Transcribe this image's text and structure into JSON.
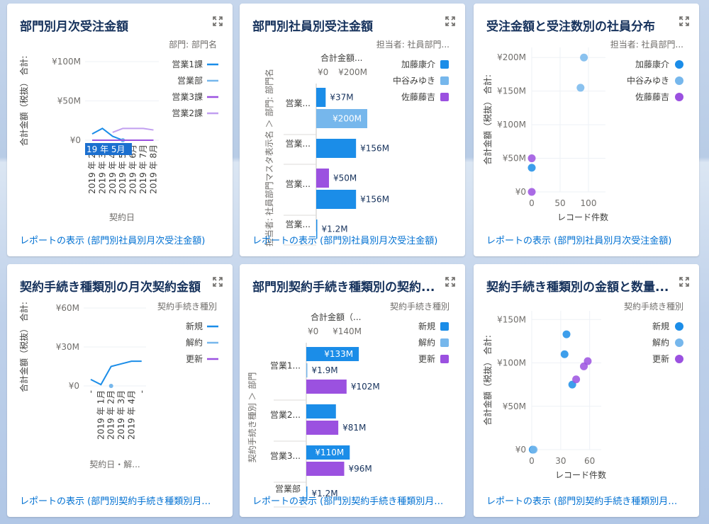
{
  "colors": {
    "blue_dark": "#1b8de8",
    "blue_light": "#76b7ec",
    "purple": "#9b51e0",
    "lavender": "#c19ff0",
    "navy": "#1b6fcf"
  },
  "cards": [
    {
      "title": "部門別月次受注金額",
      "link": "レポートの表示 (部門別社員別月次受注金額)",
      "chart_data": {
        "type": "line",
        "ylabel": "合計金額（税抜） 合計:",
        "xlabel": "契約日",
        "y_ticks": [
          "¥100M",
          "¥50M",
          "¥0"
        ],
        "y_tick_values": [
          100,
          50,
          0
        ],
        "x_ticks": [
          "2019 年 2月",
          "2019 年 3月",
          "2019 年 4月",
          "2019 年 5月",
          "2019 年 6月",
          "2019 年 7月",
          "2019 年 8月"
        ],
        "tooltip": "19 年 5月",
        "legend_title": "部門: 部門名",
        "ylim": [
          0,
          100
        ],
        "series": [
          {
            "name": "営業1課",
            "color": "#1b8de8",
            "values": [
              8,
              15,
              5,
              0,
              0,
              0,
              0
            ]
          },
          {
            "name": "営業部",
            "color": "#76b7ec",
            "values": [
              null,
              null,
              null,
              0,
              null,
              null,
              null
            ]
          },
          {
            "name": "営業3課",
            "color": "#9b51e0",
            "values": [
              0,
              0,
              0,
              0,
              0,
              0,
              0
            ]
          },
          {
            "name": "営業2課",
            "color": "#c19ff0",
            "values": [
              null,
              null,
              10,
              15,
              15,
              15,
              13
            ]
          }
        ]
      }
    },
    {
      "title": "部門別社員別受注金額",
      "link": "レポートの表示 (部門別社員別月次受注金額)",
      "chart_data": {
        "type": "bar",
        "orientation": "horizontal",
        "xlabel": "合計金額...",
        "ylabel": "担当者: 社員部門マスタ表示名 ＞ 部門: 部門名",
        "x_ticks": [
          "¥0",
          "¥200M"
        ],
        "xlim": [
          0,
          200
        ],
        "legend_title": "担当者: 社員部門...",
        "legend": [
          {
            "name": "加藤康介",
            "color": "#1b8de8"
          },
          {
            "name": "中谷みゆき",
            "color": "#76b7ec"
          },
          {
            "name": "佐藤藤吉",
            "color": "#9b51e0"
          }
        ],
        "groups": [
          "営業...",
          "営業...",
          "営業...",
          "営業..."
        ],
        "bars": [
          {
            "group": 0,
            "value": 37,
            "label": "¥37M",
            "color": "#1b8de8"
          },
          {
            "group": 0,
            "value": 200,
            "label": "¥200M",
            "color": "#76b7ec"
          },
          {
            "group": 1,
            "value": 156,
            "label": "¥156M",
            "color": "#1b8de8"
          },
          {
            "group": 2,
            "value": 50,
            "label": "¥50M",
            "color": "#9b51e0"
          },
          {
            "group": 2,
            "value": 156,
            "label": "¥156M",
            "color": "#1b8de8"
          },
          {
            "group": 3,
            "value": 1.2,
            "label": "¥1.2M",
            "color": "#1b8de8"
          }
        ]
      }
    },
    {
      "title": "受注金額と受注数別の社員分布",
      "link": "レポートの表示 (部門別社員別月次受注金額)",
      "chart_data": {
        "type": "scatter",
        "xlabel": "レコード件数",
        "ylabel": "合計金額（税抜） 合計:",
        "y_ticks": [
          "¥200M",
          "¥150M",
          "¥100M",
          "¥50M",
          "¥0"
        ],
        "y_tick_values": [
          200,
          150,
          100,
          50,
          0
        ],
        "x_ticks": [
          "0",
          "50",
          "100"
        ],
        "x_tick_values": [
          0,
          50,
          100
        ],
        "xlim": [
          0,
          130
        ],
        "ylim": [
          0,
          215
        ],
        "legend_title": "担当者: 社員部門...",
        "legend": [
          {
            "name": "加藤康介",
            "color": "#1b8de8"
          },
          {
            "name": "中谷みゆき",
            "color": "#76b7ec"
          },
          {
            "name": "佐藤藤吉",
            "color": "#9b51e0"
          }
        ],
        "points": [
          {
            "x": 0,
            "y": 36,
            "color": "#1b8de8"
          },
          {
            "x": 92,
            "y": 200,
            "color": "#76b7ec"
          },
          {
            "x": 86,
            "y": 155,
            "color": "#76b7ec"
          },
          {
            "x": 0,
            "y": 50,
            "color": "#9b51e0"
          },
          {
            "x": 0,
            "y": 0,
            "color": "#9b51e0"
          }
        ]
      }
    },
    {
      "title": "契約手続き種類別の月次契約金額",
      "link": "レポートの表示 (部門別契約手続き種類別月次契...",
      "chart_data": {
        "type": "line",
        "ylabel": "合計金額（税抜） 合計:",
        "xlabel": "契約日・解...",
        "y_ticks": [
          "¥60M",
          "¥30M",
          "¥0"
        ],
        "y_tick_values": [
          60,
          30,
          0
        ],
        "x_ticks": [
          "-",
          "2019 年 1月",
          "2019 年 2月",
          "2019 年 3月",
          "2019 年 4月",
          "-"
        ],
        "ylim": [
          0,
          60
        ],
        "legend_title": "契約手続き種別",
        "series": [
          {
            "name": "新規",
            "color": "#1b8de8",
            "values": [
              5,
              1,
              15,
              17,
              19,
              19
            ]
          },
          {
            "name": "解約",
            "color": "#76b7ec",
            "values": [
              null,
              null,
              0,
              null,
              null,
              null
            ]
          },
          {
            "name": "更新",
            "color": "#9b51e0",
            "values": [
              null,
              null,
              null,
              null,
              null,
              null
            ]
          }
        ]
      }
    },
    {
      "title": "部門別契約手続き種類別の契約...",
      "link": "レポートの表示 (部門別契約手続き種類別月次契...",
      "chart_data": {
        "type": "bar",
        "orientation": "horizontal",
        "xlabel": "合計金額（...",
        "ylabel": "契約手続き種別 ＞ 部門",
        "x_ticks": [
          "¥0",
          "¥140M"
        ],
        "xlim": [
          0,
          140
        ],
        "legend_title": "契約手続き種別",
        "legend": [
          {
            "name": "新規",
            "color": "#1b8de8"
          },
          {
            "name": "解約",
            "color": "#76b7ec"
          },
          {
            "name": "更新",
            "color": "#9b51e0"
          }
        ],
        "groups": [
          "営業1...",
          "営業2...",
          "営業3...",
          "営業部"
        ],
        "bars": [
          {
            "group": 0,
            "value": 133,
            "label": "¥133M",
            "color": "#1b8de8"
          },
          {
            "group": 0,
            "value": 1.9,
            "label": "¥1.9M",
            "color": "#76b7ec"
          },
          {
            "group": 0,
            "value": 102,
            "label": "¥102M",
            "color": "#9b51e0"
          },
          {
            "group": 1,
            "value": 75,
            "label": "",
            "color": "#1b8de8"
          },
          {
            "group": 1,
            "value": 81,
            "label": "¥81M",
            "color": "#9b51e0"
          },
          {
            "group": 2,
            "value": 110,
            "label": "¥110M",
            "color": "#1b8de8"
          },
          {
            "group": 2,
            "value": 96,
            "label": "¥96M",
            "color": "#9b51e0"
          },
          {
            "group": 3,
            "value": 1.2,
            "label": "¥1.2M",
            "color": "#1b8de8"
          }
        ]
      }
    },
    {
      "title": "契約手続き種類別の金額と数量...",
      "link": "レポートの表示 (部門別契約手続き種類別月次契...",
      "chart_data": {
        "type": "scatter",
        "xlabel": "レコード件数",
        "ylabel": "合計金額（税抜） 合計:",
        "y_ticks": [
          "¥150M",
          "¥100M",
          "¥50M",
          "¥0"
        ],
        "y_tick_values": [
          150,
          100,
          50,
          0
        ],
        "x_ticks": [
          "0",
          "30",
          "60"
        ],
        "x_tick_values": [
          0,
          30,
          60
        ],
        "xlim": [
          0,
          72
        ],
        "ylim": [
          0,
          160
        ],
        "legend_title": "契約手続き種別",
        "legend": [
          {
            "name": "新規",
            "color": "#1b8de8"
          },
          {
            "name": "解約",
            "color": "#76b7ec"
          },
          {
            "name": "更新",
            "color": "#9b51e0"
          }
        ],
        "points": [
          {
            "x": 36,
            "y": 133,
            "color": "#1b8de8"
          },
          {
            "x": 34,
            "y": 110,
            "color": "#1b8de8"
          },
          {
            "x": 42,
            "y": 75,
            "color": "#1b8de8"
          },
          {
            "x": 1,
            "y": 0,
            "color": "#1b8de8"
          },
          {
            "x": 2,
            "y": 0,
            "color": "#76b7ec"
          },
          {
            "x": 58,
            "y": 102,
            "color": "#9b51e0"
          },
          {
            "x": 54,
            "y": 96,
            "color": "#9b51e0"
          },
          {
            "x": 46,
            "y": 81,
            "color": "#9b51e0"
          }
        ]
      }
    }
  ]
}
